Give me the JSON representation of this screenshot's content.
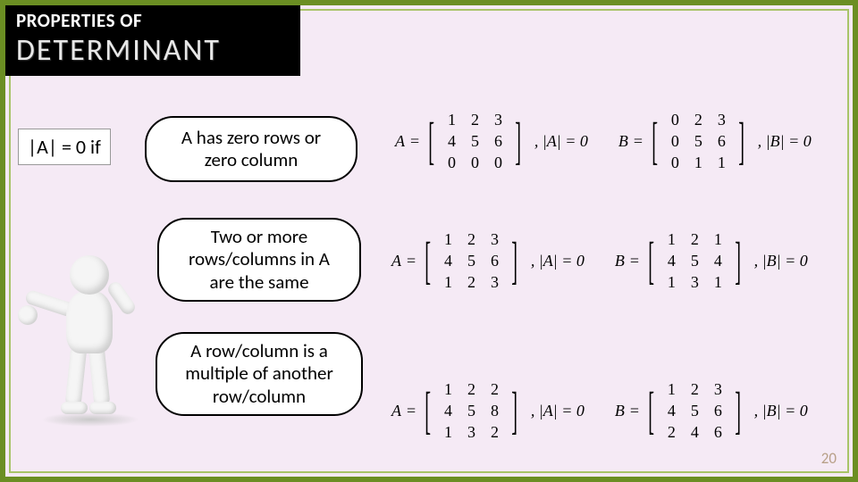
{
  "header": {
    "line1": "PROPERTIES OF",
    "line2": "DETERMINANT"
  },
  "condition": "|A| = 0 if",
  "bubbles": {
    "b1_l1": "A has zero rows or",
    "b1_l2": "zero column",
    "b2_l1": "Two or more",
    "b2_l2": "rows/columns in A",
    "b2_l3": "are the same",
    "b3_l1": "A row/column is a",
    "b3_l2": "multiple of another",
    "b3_l3": "row/column"
  },
  "matrices": {
    "row1": {
      "A": {
        "label": "A",
        "cells": [
          "1",
          "2",
          "3",
          "4",
          "5",
          "6",
          "0",
          "0",
          "0"
        ],
        "highlight_rows": [
          2
        ],
        "det": "|A| = 0"
      },
      "B": {
        "label": "B",
        "cells": [
          "0",
          "2",
          "3",
          "0",
          "5",
          "6",
          "0",
          "1",
          "1"
        ],
        "highlight_cols": [
          0
        ],
        "det": "|B| = 0"
      }
    },
    "row2": {
      "A": {
        "label": "A",
        "cells": [
          "1",
          "2",
          "3",
          "4",
          "5",
          "6",
          "1",
          "2",
          "3"
        ],
        "highlight_rows": [
          0,
          2
        ],
        "det": "|A| = 0"
      },
      "B": {
        "label": "B",
        "cells": [
          "1",
          "2",
          "1",
          "4",
          "5",
          "4",
          "1",
          "3",
          "1"
        ],
        "highlight_cols": [
          0,
          2
        ],
        "det": "|B| = 0"
      }
    },
    "row3": {
      "A": {
        "label": "A",
        "cells": [
          "1",
          "2",
          "2",
          "4",
          "5",
          "8",
          "1",
          "3",
          "2"
        ],
        "highlight_cols": [
          0,
          2
        ],
        "det": "|A| = 0"
      },
      "B": {
        "label": "B",
        "cells": [
          "1",
          "2",
          "3",
          "4",
          "5",
          "6",
          "2",
          "4",
          "6"
        ],
        "highlight_rows": [
          0,
          2
        ],
        "det": "|B| = 0"
      }
    }
  },
  "page_number": "20",
  "colors": {
    "slide_bg": "#f5eaf5",
    "outer_border": "#6b8e23",
    "inner_border": "#a8c468",
    "highlight": "#bcbcbc",
    "page_num": "#b8a088"
  }
}
